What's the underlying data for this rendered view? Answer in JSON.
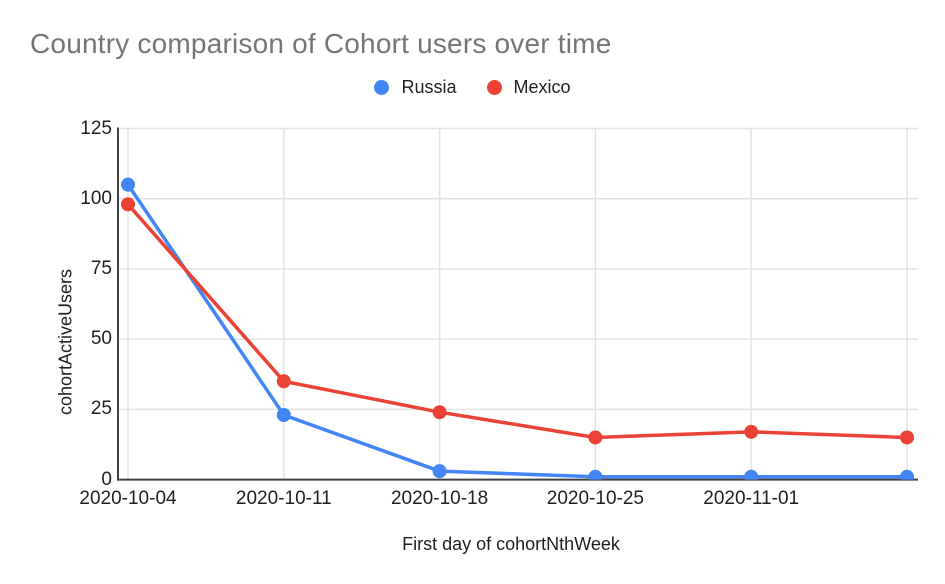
{
  "header": {
    "title": "Country comparison of Cohort users over time"
  },
  "colors": {
    "russia_blue": "#4285F4",
    "mexico_red": "#EA4335",
    "title_text": "#757575",
    "axis_text": "#1f1f1f",
    "gridline": "#e3e3e3",
    "axis_line": "#424242"
  },
  "legend": {
    "items": [
      {
        "label": "Russia",
        "color": "#4285F4"
      },
      {
        "label": "Mexico",
        "color": "#EA4335"
      }
    ]
  },
  "chart_data": {
    "type": "line",
    "title": "Country comparison of Cohort users over time",
    "xlabel": "First day of cohortNthWeek",
    "ylabel": "cohortActiveUsers",
    "categories": [
      "2020-10-04",
      "2020-10-11",
      "2020-10-18",
      "2020-10-25",
      "2020-11-01",
      ""
    ],
    "series": [
      {
        "name": "Russia",
        "color": "#4285F4",
        "values": [
          105,
          23,
          3,
          1,
          1,
          1
        ]
      },
      {
        "name": "Mexico",
        "color": "#EA4335",
        "values": [
          98,
          35,
          24,
          15,
          17,
          15
        ]
      }
    ],
    "ylim": [
      0,
      125
    ],
    "yticks": [
      0,
      25,
      50,
      75,
      100,
      125
    ],
    "grid": true,
    "legend_position": "top",
    "marker": "circle"
  }
}
